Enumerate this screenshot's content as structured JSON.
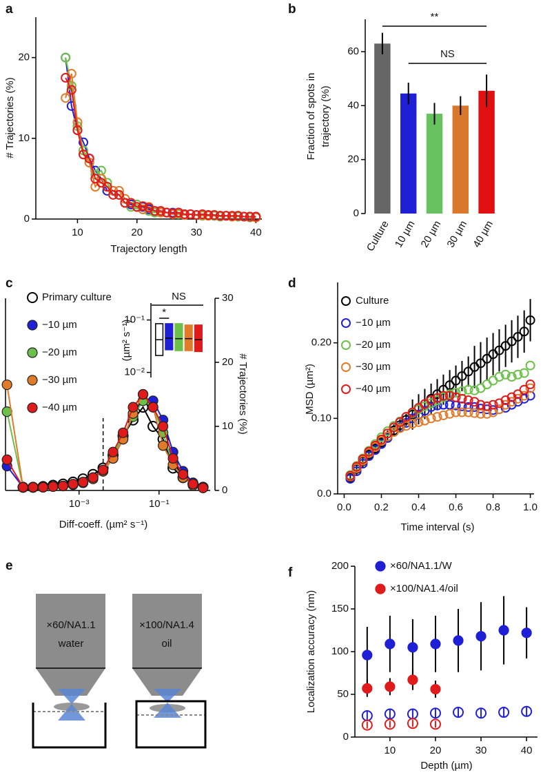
{
  "chart_data": [
    {
      "type": "scatter",
      "panel": "a",
      "xlabel": "Trajectory length",
      "ylabel": "# Trajectories (%)",
      "xlim": [
        3,
        41
      ],
      "ylim": [
        0,
        25
      ],
      "xticks": [
        10,
        20,
        30,
        40
      ],
      "yticks": [
        0,
        10,
        20
      ],
      "lines": true,
      "x": [
        8,
        9,
        10,
        11,
        12,
        13,
        14,
        15,
        16,
        17,
        18,
        19,
        20,
        21,
        22,
        23,
        24,
        25,
        26,
        27,
        28,
        29,
        30,
        31,
        32,
        33,
        34,
        35,
        36,
        37,
        38,
        39,
        40
      ],
      "series": [
        {
          "color": "#1f1fd6",
          "filled": false,
          "values": [
            20,
            14,
            11,
            9.5,
            7.5,
            6,
            5,
            3.5,
            3.5,
            3,
            2,
            1.8,
            1.5,
            1.5,
            1.2,
            1,
            1,
            0.8,
            0.8,
            0.8,
            0.6,
            0.6,
            0.5,
            0.5,
            0.5,
            0.4,
            0.4,
            0.4,
            0.3,
            0.3,
            0.3,
            0.3,
            0.3
          ]
        },
        {
          "color": "#6cc04a",
          "filled": false,
          "values": [
            20,
            16.5,
            11.5,
            8.5,
            7,
            5.5,
            6,
            4.5,
            3,
            3,
            2,
            1.5,
            1.8,
            1.2,
            1,
            0.8,
            0.9,
            0.8,
            0.7,
            0.6,
            0.5,
            0.6,
            0.5,
            0.4,
            0.5,
            0.4,
            0.3,
            0.4,
            0.3,
            0.3,
            0.3,
            0.2,
            0.2
          ]
        },
        {
          "color": "#e07b2a",
          "filled": false,
          "values": [
            15,
            18,
            12,
            8,
            7,
            4,
            5,
            4,
            3.5,
            3.5,
            2.5,
            2,
            1.5,
            1.2,
            1.5,
            1,
            0.8,
            0.8,
            0.6,
            0.7,
            0.5,
            0.6,
            0.5,
            0.5,
            0.4,
            0.5,
            0.4,
            0.4,
            0.3,
            0.4,
            0.3,
            0.3,
            0.2
          ]
        },
        {
          "color": "#e01b1b",
          "filled": false,
          "values": [
            17.5,
            16,
            11,
            8,
            7.5,
            5,
            4.5,
            4,
            3,
            3,
            2,
            2,
            1.5,
            1.6,
            1.4,
            1,
            1,
            0.8,
            0.7,
            0.8,
            0.6,
            0.6,
            0.5,
            0.6,
            0.5,
            0.5,
            0.4,
            0.4,
            0.4,
            0.4,
            0.3,
            0.3,
            0.3
          ]
        }
      ]
    },
    {
      "type": "bar",
      "panel": "b",
      "ylabel": [
        "Fraction of spots in",
        "trajectory (%)"
      ],
      "ylim": [
        0,
        72
      ],
      "yticks": [
        0,
        20,
        40,
        60
      ],
      "annotations": [
        "**",
        "NS"
      ],
      "categories": [
        "Culture",
        "10 µm",
        "20 µm",
        "30 µm",
        "40 µm"
      ],
      "values": [
        63,
        44.5,
        37,
        40,
        45.5
      ],
      "errors": [
        4,
        4,
        4,
        3.5,
        6
      ],
      "colors": [
        "#666666",
        "#1f1fd6",
        "#66c25e",
        "#d9772b",
        "#e01010"
      ]
    },
    {
      "type": "scatter",
      "panel": "c",
      "xlabel": "Diff-coeff. (µm² s⁻¹)",
      "ylabel": "# Trajectories (%)",
      "xlog": true,
      "xlim": [
        1.45e-05,
        1.9
      ],
      "ylim": [
        0,
        30
      ],
      "xticks": [
        {
          "value": 0.001,
          "label": "10⁻³"
        },
        {
          "value": 0.1,
          "label": "10⁻¹"
        }
      ],
      "yticks": [
        0,
        10,
        20,
        30
      ],
      "lines": true,
      "threshold": 0.004,
      "marker_edge": "#222222",
      "x": [
        1.58e-05,
        3.98e-05,
        7.08e-05,
        0.000126,
        0.000224,
        0.000398,
        0.000708,
        0.00126,
        0.00224,
        0.00398,
        0.00708,
        0.0126,
        0.0224,
        0.0398,
        0.0708,
        0.126,
        0.224,
        0.398,
        0.708,
        1.26
      ],
      "series": [
        {
          "name": "Primary culture",
          "color": "#000000",
          "filled": false,
          "values": [
            null,
            0.5,
            0.5,
            0.6,
            0.8,
            1,
            1.3,
            1.8,
            2.5,
            3.5,
            5.5,
            8.5,
            11,
            13,
            10,
            8,
            3.5,
            2,
            1,
            0.5
          ]
        },
        {
          "name": "−10 µm",
          "color": "#1f1fd6",
          "filled": true,
          "values": [
            3.8,
            0.5,
            0.5,
            0.5,
            0.6,
            0.7,
            0.9,
            1.2,
            2,
            3,
            5,
            8,
            12,
            14,
            14,
            11,
            6,
            3,
            1.2,
            0.5
          ]
        },
        {
          "name": "−20 µm",
          "color": "#6cc04a",
          "filled": true,
          "values": [
            12.3,
            0.5,
            0.5,
            0.5,
            0.6,
            0.7,
            0.9,
            1.3,
            2,
            3,
            5.5,
            8.5,
            11.5,
            14,
            13,
            9,
            4,
            2,
            0.8,
            0.5
          ]
        },
        {
          "name": "−30 µm",
          "color": "#e07b2a",
          "filled": true,
          "values": [
            16.5,
            0.5,
            0.5,
            0.5,
            0.6,
            0.7,
            0.9,
            1.2,
            1.8,
            3,
            5,
            8,
            12,
            15,
            13,
            7,
            4,
            2,
            0.8,
            0.4
          ]
        },
        {
          "name": "−40 µm",
          "color": "#e01b1b",
          "filled": true,
          "values": [
            4.8,
            0.5,
            0.5,
            0.5,
            0.6,
            0.7,
            1,
            1.3,
            2,
            3.2,
            6,
            9,
            13,
            15,
            13,
            10,
            5,
            2.5,
            1,
            0.4
          ]
        }
      ]
    },
    {
      "type": "box",
      "ylabel": "(µm² s⁻¹)",
      "ylog": true,
      "ylim": [
        0.008,
        0.21
      ],
      "yticks": [
        {
          "value": 0.01,
          "label": "10⁻²"
        },
        {
          "value": 0.1,
          "label": "10⁻¹"
        }
      ],
      "annotations": [
        "NS",
        "*"
      ],
      "series": [
        {
          "color": "#000000",
          "filled": false,
          "low": 0.021,
          "median": 0.042,
          "high": 0.085
        },
        {
          "color": "#1f1fd6",
          "filled": true,
          "low": 0.027,
          "median": 0.045,
          "high": 0.085
        },
        {
          "color": "#6cc04a",
          "filled": true,
          "low": 0.026,
          "median": 0.044,
          "high": 0.085
        },
        {
          "color": "#e07b2a",
          "filled": true,
          "low": 0.026,
          "median": 0.044,
          "high": 0.08
        },
        {
          "color": "#e01b1b",
          "filled": true,
          "low": 0.025,
          "median": 0.042,
          "high": 0.08
        }
      ]
    },
    {
      "type": "scatter",
      "panel": "d",
      "xlabel": "Time interval (s)",
      "ylabel": "MSD (µm²)",
      "xlim": [
        -0.035,
        1.02
      ],
      "ylim": [
        0,
        0.28
      ],
      "xticks": [
        {
          "value": 0,
          "label": "0.0"
        },
        0.2,
        0.4,
        0.6,
        0.8,
        {
          "value": 1,
          "label": "1.0"
        }
      ],
      "yticks": [
        {
          "value": 0,
          "label": "0.0"
        },
        {
          "value": 0.1,
          "label": "0.10"
        },
        {
          "value": 0.2,
          "label": "0.20"
        }
      ],
      "x": [
        0.033,
        0.067,
        0.1,
        0.133,
        0.167,
        0.2,
        0.233,
        0.267,
        0.3,
        0.333,
        0.367,
        0.4,
        0.433,
        0.467,
        0.5,
        0.533,
        0.567,
        0.6,
        0.633,
        0.667,
        0.7,
        0.733,
        0.767,
        0.8,
        0.833,
        0.867,
        0.9,
        0.933,
        0.967,
        1.0
      ],
      "series": [
        {
          "name": "Culture",
          "color": "#000000",
          "filled": false,
          "values": [
            0.022,
            0.033,
            0.043,
            0.052,
            0.06,
            0.068,
            0.076,
            0.084,
            0.091,
            0.098,
            0.105,
            0.112,
            0.119,
            0.126,
            0.132,
            0.138,
            0.144,
            0.15,
            0.156,
            0.162,
            0.168,
            0.173,
            0.179,
            0.185,
            0.19,
            0.196,
            0.202,
            0.208,
            0.215,
            0.23
          ],
          "errors": [
            0.008,
            0.008,
            0.008,
            0.008,
            0.008,
            0.008,
            0.008,
            0.008,
            0.008,
            0.008,
            0.02,
            0.02,
            0.02,
            0.02,
            0.02,
            0.02,
            0.02,
            0.02,
            0.02,
            0.02,
            0.028,
            0.028,
            0.028,
            0.028,
            0.028,
            0.028,
            0.028,
            0.028,
            0.028,
            0.028
          ]
        },
        {
          "name": "−10 µm",
          "color": "#1f1fd6",
          "filled": false,
          "values": [
            0.02,
            0.03,
            0.04,
            0.05,
            0.058,
            0.066,
            0.074,
            0.082,
            0.088,
            0.094,
            0.1,
            0.105,
            0.11,
            0.115,
            0.117,
            0.118,
            0.118,
            0.117,
            0.116,
            0.115,
            0.115,
            0.113,
            0.112,
            0.111,
            0.112,
            0.114,
            0.118,
            0.122,
            0.126,
            0.13
          ]
        },
        {
          "name": "−20 µm",
          "color": "#6cc04a",
          "filled": false,
          "values": [
            0.025,
            0.037,
            0.047,
            0.057,
            0.066,
            0.075,
            0.083,
            0.09,
            0.096,
            0.102,
            0.107,
            0.112,
            0.116,
            0.12,
            0.124,
            0.128,
            0.132,
            0.134,
            0.136,
            0.138,
            0.137,
            0.14,
            0.145,
            0.15,
            0.155,
            0.158,
            0.155,
            0.158,
            0.16,
            0.17
          ]
        },
        {
          "name": "−30 µm",
          "color": "#e07b2a",
          "filled": false,
          "values": [
            0.023,
            0.034,
            0.044,
            0.054,
            0.062,
            0.07,
            0.076,
            0.082,
            0.087,
            0.09,
            0.093,
            0.095,
            0.097,
            0.1,
            0.102,
            0.104,
            0.106,
            0.108,
            0.108,
            0.108,
            0.107,
            0.106,
            0.106,
            0.108,
            0.112,
            0.118,
            0.122,
            0.126,
            0.13,
            0.14
          ]
        },
        {
          "name": "−40 µm",
          "color": "#e01b1b",
          "filled": false,
          "values": [
            0.024,
            0.036,
            0.046,
            0.056,
            0.064,
            0.072,
            0.08,
            0.088,
            0.095,
            0.102,
            0.108,
            0.114,
            0.119,
            0.124,
            0.127,
            0.13,
            0.13,
            0.128,
            0.126,
            0.124,
            0.122,
            0.118,
            0.116,
            0.118,
            0.12,
            0.124,
            0.128,
            0.132,
            0.138,
            0.145
          ]
        }
      ]
    },
    {
      "type": "scatter",
      "panel": "f",
      "xlabel": "Depth (µm)",
      "ylabel": "Localization accuracy (nm)",
      "xlim": [
        2.3,
        42.4
      ],
      "ylim": [
        0,
        200
      ],
      "xticks": [
        10,
        20,
        30,
        40
      ],
      "yticks": [
        0,
        50,
        100,
        150,
        200
      ],
      "series": [
        {
          "name": "×60/NA1.1/W",
          "color": "#1f1fd6",
          "filled": true,
          "x": [
            5,
            10,
            15,
            20,
            25,
            30,
            35,
            40
          ],
          "values": [
            96,
            109,
            105,
            109,
            113,
            118,
            125,
            122
          ],
          "errors": [
            33,
            33,
            33,
            33,
            37,
            40,
            40,
            30
          ]
        },
        {
          "name": "×100/NA1.4/oil",
          "color": "#e01b1b",
          "filled": true,
          "x": [
            5,
            10,
            15,
            20
          ],
          "values": [
            57,
            59,
            67,
            56
          ],
          "errors": [
            10,
            10,
            12,
            10
          ]
        },
        {
          "color": "#1f1fd6",
          "filled": false,
          "x": [
            5,
            10,
            15,
            20,
            25,
            30,
            35,
            40
          ],
          "values": [
            25,
            27,
            27,
            28,
            29,
            28,
            29,
            30
          ],
          "errors": [
            5,
            5,
            5,
            5,
            5,
            5,
            5,
            5
          ]
        },
        {
          "color": "#e01b1b",
          "filled": false,
          "x": [
            5,
            10,
            15,
            20
          ],
          "values": [
            14,
            15,
            16,
            15
          ],
          "errors": [
            4,
            4,
            4,
            4
          ]
        }
      ]
    }
  ],
  "diagram": {
    "panel": "e",
    "objectives": [
      {
        "lens": "×60/NA1.1",
        "medium": "water"
      },
      {
        "lens": "×100/NA1.4",
        "medium": "oil"
      }
    ]
  }
}
